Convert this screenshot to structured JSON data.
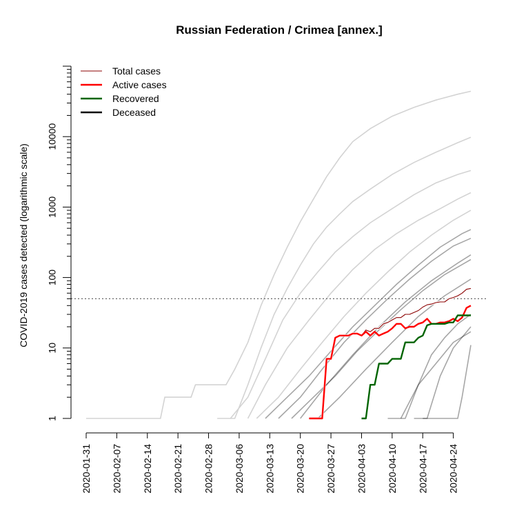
{
  "chart_data": {
    "type": "line",
    "title": "Russian Federation / Crimea [annex.]",
    "xlabel": "",
    "ylabel": "COVID-2019 cases detected (logarithmic scale)",
    "y_scale": "log",
    "ylim": [
      1,
      100000
    ],
    "xlim": [
      "2020-01-31",
      "2020-04-28"
    ],
    "x_ticks": [
      "2020-01-31",
      "2020-02-07",
      "2020-02-14",
      "2020-02-21",
      "2020-02-28",
      "2020-03-06",
      "2020-03-13",
      "2020-03-20",
      "2020-03-27",
      "2020-04-03",
      "2020-04-10",
      "2020-04-17",
      "2020-04-24"
    ],
    "y_ticks": [
      {
        "value": 1,
        "label": "1"
      },
      {
        "value": 10,
        "label": "10"
      },
      {
        "value": 100,
        "label": "100"
      },
      {
        "value": 1000,
        "label": "1000"
      },
      {
        "value": 10000,
        "label": "10000"
      }
    ],
    "reference_line": {
      "y": 50,
      "style": "dotted",
      "color": "#666666"
    },
    "legend": {
      "position": "top-left",
      "entries": [
        {
          "label": "Total cases",
          "color": "#8b0000"
        },
        {
          "label": "Active cases",
          "color": "#ff0000"
        },
        {
          "label": "Recovered",
          "color": "#006400"
        },
        {
          "label": "Deceased",
          "color": "#000000"
        }
      ]
    },
    "series": [
      {
        "role": "total",
        "color": "#8b0000",
        "points": [
          [
            "2020-03-22",
            1
          ],
          [
            "2020-03-25",
            1
          ],
          [
            "2020-03-26",
            7
          ],
          [
            "2020-03-27",
            7
          ],
          [
            "2020-03-28",
            14
          ],
          [
            "2020-03-29",
            15
          ],
          [
            "2020-03-31",
            15
          ],
          [
            "2020-04-01",
            16
          ],
          [
            "2020-04-02",
            16
          ],
          [
            "2020-04-03",
            15
          ],
          [
            "2020-04-04",
            18
          ],
          [
            "2020-04-05",
            17
          ],
          [
            "2020-04-06",
            19
          ],
          [
            "2020-04-07",
            19
          ],
          [
            "2020-04-08",
            22
          ],
          [
            "2020-04-09",
            23
          ],
          [
            "2020-04-10",
            25
          ],
          [
            "2020-04-11",
            27
          ],
          [
            "2020-04-12",
            27
          ],
          [
            "2020-04-13",
            30
          ],
          [
            "2020-04-14",
            30
          ],
          [
            "2020-04-15",
            32
          ],
          [
            "2020-04-16",
            34
          ],
          [
            "2020-04-17",
            38
          ],
          [
            "2020-04-18",
            41
          ],
          [
            "2020-04-19",
            42
          ],
          [
            "2020-04-20",
            44
          ],
          [
            "2020-04-21",
            45
          ],
          [
            "2020-04-22",
            45
          ],
          [
            "2020-04-23",
            50
          ],
          [
            "2020-04-24",
            52
          ],
          [
            "2020-04-25",
            55
          ],
          [
            "2020-04-26",
            60
          ],
          [
            "2020-04-27",
            68
          ],
          [
            "2020-04-28",
            70
          ]
        ]
      },
      {
        "role": "active",
        "color": "#ff0000",
        "points": [
          [
            "2020-03-22",
            1
          ],
          [
            "2020-03-25",
            1
          ],
          [
            "2020-03-26",
            7
          ],
          [
            "2020-03-27",
            7
          ],
          [
            "2020-03-28",
            14
          ],
          [
            "2020-03-29",
            15
          ],
          [
            "2020-03-31",
            15
          ],
          [
            "2020-04-01",
            16
          ],
          [
            "2020-04-02",
            16
          ],
          [
            "2020-04-03",
            15
          ],
          [
            "2020-04-04",
            17
          ],
          [
            "2020-04-05",
            15
          ],
          [
            "2020-04-06",
            17
          ],
          [
            "2020-04-07",
            15
          ],
          [
            "2020-04-08",
            16
          ],
          [
            "2020-04-09",
            17
          ],
          [
            "2020-04-10",
            19
          ],
          [
            "2020-04-11",
            22
          ],
          [
            "2020-04-12",
            22
          ],
          [
            "2020-04-13",
            19
          ],
          [
            "2020-04-14",
            20
          ],
          [
            "2020-04-15",
            20
          ],
          [
            "2020-04-16",
            22
          ],
          [
            "2020-04-17",
            23
          ],
          [
            "2020-04-18",
            26
          ],
          [
            "2020-04-19",
            22
          ],
          [
            "2020-04-20",
            22
          ],
          [
            "2020-04-21",
            23
          ],
          [
            "2020-04-22",
            23
          ],
          [
            "2020-04-23",
            24
          ],
          [
            "2020-04-24",
            26
          ],
          [
            "2020-04-25",
            24
          ],
          [
            "2020-04-26",
            27
          ],
          [
            "2020-04-27",
            37
          ],
          [
            "2020-04-28",
            40
          ]
        ]
      },
      {
        "role": "recovered",
        "color": "#006400",
        "points": [
          [
            "2020-04-03",
            1
          ],
          [
            "2020-04-04",
            1
          ],
          [
            "2020-04-05",
            3
          ],
          [
            "2020-04-06",
            3
          ],
          [
            "2020-04-07",
            6
          ],
          [
            "2020-04-08",
            6
          ],
          [
            "2020-04-09",
            6
          ],
          [
            "2020-04-10",
            7
          ],
          [
            "2020-04-11",
            7
          ],
          [
            "2020-04-12",
            7
          ],
          [
            "2020-04-13",
            12
          ],
          [
            "2020-04-14",
            12
          ],
          [
            "2020-04-15",
            12
          ],
          [
            "2020-04-16",
            14
          ],
          [
            "2020-04-17",
            15
          ],
          [
            "2020-04-18",
            21
          ],
          [
            "2020-04-19",
            22
          ],
          [
            "2020-04-20",
            22
          ],
          [
            "2020-04-21",
            22
          ],
          [
            "2020-04-22",
            22
          ],
          [
            "2020-04-23",
            23
          ],
          [
            "2020-04-24",
            23
          ],
          [
            "2020-04-25",
            29
          ],
          [
            "2020-04-26",
            29
          ],
          [
            "2020-04-27",
            29
          ],
          [
            "2020-04-28",
            29
          ]
        ]
      }
    ],
    "background_series": {
      "color_light": "#d3d3d3",
      "color_dark": "#000000",
      "lines": [
        [
          [
            "2020-01-31",
            1
          ],
          [
            "2020-02-17",
            1
          ],
          [
            "2020-02-18",
            2
          ],
          [
            "2020-02-24",
            2
          ],
          [
            "2020-02-25",
            3
          ],
          [
            "2020-03-03",
            3
          ],
          [
            "2020-03-05",
            5
          ],
          [
            "2020-03-08",
            12
          ],
          [
            "2020-03-11",
            40
          ],
          [
            "2020-03-14",
            110
          ],
          [
            "2020-03-17",
            270
          ],
          [
            "2020-03-20",
            620
          ],
          [
            "2020-03-23",
            1300
          ],
          [
            "2020-03-26",
            2700
          ],
          [
            "2020-03-29",
            5000
          ],
          [
            "2020-04-01",
            8500
          ],
          [
            "2020-04-05",
            13000
          ],
          [
            "2020-04-10",
            19500
          ],
          [
            "2020-04-15",
            26000
          ],
          [
            "2020-04-20",
            33000
          ],
          [
            "2020-04-25",
            40000
          ],
          [
            "2020-04-28",
            44000
          ]
        ],
        [
          [
            "2020-03-01",
            1
          ],
          [
            "2020-03-05",
            1
          ],
          [
            "2020-03-08",
            3
          ],
          [
            "2020-03-11",
            10
          ],
          [
            "2020-03-14",
            30
          ],
          [
            "2020-03-17",
            70
          ],
          [
            "2020-03-20",
            150
          ],
          [
            "2020-03-23",
            300
          ],
          [
            "2020-03-26",
            520
          ],
          [
            "2020-03-29",
            800
          ],
          [
            "2020-04-01",
            1200
          ],
          [
            "2020-04-05",
            1800
          ],
          [
            "2020-04-10",
            2900
          ],
          [
            "2020-04-15",
            4300
          ],
          [
            "2020-04-20",
            6000
          ],
          [
            "2020-04-25",
            8200
          ],
          [
            "2020-04-28",
            9800
          ]
        ],
        [
          [
            "2020-03-04",
            1
          ],
          [
            "2020-03-08",
            2
          ],
          [
            "2020-03-12",
            7
          ],
          [
            "2020-03-16",
            25
          ],
          [
            "2020-03-20",
            60
          ],
          [
            "2020-03-24",
            120
          ],
          [
            "2020-03-28",
            230
          ],
          [
            "2020-04-01",
            380
          ],
          [
            "2020-04-05",
            600
          ],
          [
            "2020-04-10",
            950
          ],
          [
            "2020-04-15",
            1500
          ],
          [
            "2020-04-20",
            2200
          ],
          [
            "2020-04-25",
            2900
          ],
          [
            "2020-04-28",
            3300
          ]
        ],
        [
          [
            "2020-03-08",
            1
          ],
          [
            "2020-03-12",
            3
          ],
          [
            "2020-03-17",
            10
          ],
          [
            "2020-03-22",
            25
          ],
          [
            "2020-03-27",
            60
          ],
          [
            "2020-04-01",
            130
          ],
          [
            "2020-04-06",
            250
          ],
          [
            "2020-04-11",
            420
          ],
          [
            "2020-04-16",
            650
          ],
          [
            "2020-04-21",
            950
          ],
          [
            "2020-04-25",
            1300
          ],
          [
            "2020-04-28",
            1600
          ]
        ],
        [
          [
            "2020-03-10",
            1
          ],
          [
            "2020-03-15",
            2
          ],
          [
            "2020-03-20",
            5
          ],
          [
            "2020-03-25",
            12
          ],
          [
            "2020-03-30",
            28
          ],
          [
            "2020-04-04",
            60
          ],
          [
            "2020-04-09",
            120
          ],
          [
            "2020-04-14",
            230
          ],
          [
            "2020-04-19",
            400
          ],
          [
            "2020-04-24",
            650
          ],
          [
            "2020-04-28",
            900
          ]
        ],
        [
          [
            "2020-03-12",
            1
          ],
          [
            "2020-03-17",
            2
          ],
          [
            "2020-03-22",
            4
          ],
          [
            "2020-03-27",
            9
          ],
          [
            "2020-04-01",
            20
          ],
          [
            "2020-04-06",
            40
          ],
          [
            "2020-04-11",
            80
          ],
          [
            "2020-04-16",
            150
          ],
          [
            "2020-04-21",
            270
          ],
          [
            "2020-04-26",
            420
          ],
          [
            "2020-04-28",
            480
          ]
        ],
        [
          [
            "2020-03-15",
            1
          ],
          [
            "2020-03-20",
            2
          ],
          [
            "2020-03-25",
            5
          ],
          [
            "2020-03-30",
            12
          ],
          [
            "2020-04-04",
            25
          ],
          [
            "2020-04-09",
            50
          ],
          [
            "2020-04-14",
            95
          ],
          [
            "2020-04-19",
            170
          ],
          [
            "2020-04-24",
            280
          ],
          [
            "2020-04-28",
            360
          ]
        ],
        [
          [
            "2020-03-18",
            1
          ],
          [
            "2020-03-23",
            2
          ],
          [
            "2020-03-28",
            4
          ],
          [
            "2020-04-02",
            9
          ],
          [
            "2020-04-07",
            18
          ],
          [
            "2020-04-12",
            35
          ],
          [
            "2020-04-17",
            65
          ],
          [
            "2020-04-22",
            110
          ],
          [
            "2020-04-28",
            180
          ]
        ],
        [
          [
            "2020-03-20",
            1
          ],
          [
            "2020-03-26",
            3
          ],
          [
            "2020-04-01",
            8
          ],
          [
            "2020-04-07",
            20
          ],
          [
            "2020-04-13",
            45
          ],
          [
            "2020-04-19",
            90
          ],
          [
            "2020-04-25",
            160
          ],
          [
            "2020-04-28",
            210
          ]
        ],
        [
          [
            "2020-03-24",
            1
          ],
          [
            "2020-03-29",
            2
          ],
          [
            "2020-04-04",
            5
          ],
          [
            "2020-04-10",
            12
          ],
          [
            "2020-04-16",
            28
          ],
          [
            "2020-04-22",
            55
          ],
          [
            "2020-04-28",
            95
          ]
        ],
        [
          [
            "2020-04-09",
            1
          ],
          [
            "2020-04-13",
            1
          ],
          [
            "2020-04-16",
            3
          ],
          [
            "2020-04-19",
            8
          ],
          [
            "2020-04-22",
            14
          ],
          [
            "2020-04-25",
            22
          ],
          [
            "2020-04-28",
            30
          ]
        ],
        [
          [
            "2020-04-15",
            1
          ],
          [
            "2020-04-18",
            1
          ],
          [
            "2020-04-21",
            4
          ],
          [
            "2020-04-24",
            10
          ],
          [
            "2020-04-28",
            20
          ]
        ],
        [
          [
            "2020-04-17",
            1
          ],
          [
            "2020-04-25",
            1
          ],
          [
            "2020-04-26",
            2
          ],
          [
            "2020-04-28",
            11
          ]
        ],
        [
          [
            "2020-04-12",
            1
          ],
          [
            "2020-04-16",
            3
          ],
          [
            "2020-04-20",
            6
          ],
          [
            "2020-04-24",
            12
          ],
          [
            "2020-04-28",
            17
          ]
        ]
      ]
    }
  }
}
